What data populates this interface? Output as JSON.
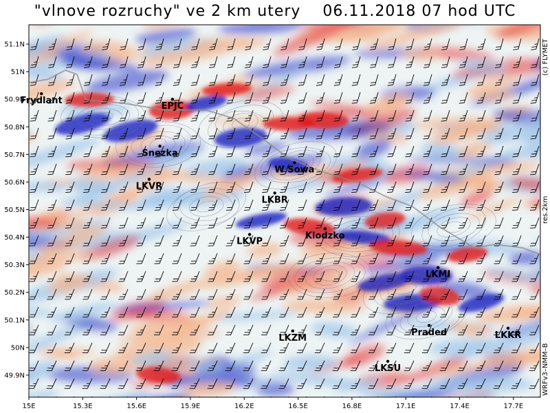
{
  "title": "\"vlnove rozruchy\" ve 2 km utery    06.11.2018 07 hod UTC",
  "y_axis_labels": [
    "51.1N",
    "51N",
    "50.9N",
    "50.8N",
    "50.7N",
    "50.6N",
    "50.5N",
    "50.4N",
    "50.3N",
    "50.2N",
    "50.1N",
    "50N",
    "49.9N"
  ],
  "x_axis_labels": [
    "15E",
    "15.3E",
    "15.6E",
    "15.9E",
    "16.2E",
    "16.5E",
    "16.8E",
    "17.1E",
    "17.4E",
    "17.7E"
  ],
  "right_top_text": "(c) FLYMET",
  "right_mid_text": "res.2km",
  "right_bottom_text": "WRFv3–NMM–B",
  "stations": [
    {
      "name": "Frydlant",
      "lon": 15.07,
      "lat": 50.92
    },
    {
      "name": "EPJC",
      "lon": 15.8,
      "lat": 50.9
    },
    {
      "name": "Snezka",
      "lon": 15.73,
      "lat": 50.73
    },
    {
      "name": "LKVR",
      "lon": 15.67,
      "lat": 50.61
    },
    {
      "name": "W Sowa",
      "lon": 16.48,
      "lat": 50.67
    },
    {
      "name": "LKBR",
      "lon": 16.37,
      "lat": 50.56
    },
    {
      "name": "LKVP",
      "lon": 16.23,
      "lat": 50.41
    },
    {
      "name": "Klodzko",
      "lon": 16.65,
      "lat": 50.43
    },
    {
      "name": "LKMI",
      "lon": 17.28,
      "lat": 50.29
    },
    {
      "name": "LKZM",
      "lon": 16.47,
      "lat": 50.06
    },
    {
      "name": "Praded",
      "lon": 17.23,
      "lat": 50.08
    },
    {
      "name": "LKKR",
      "lon": 17.67,
      "lat": 50.07
    },
    {
      "name": "LKSU",
      "lon": 17.0,
      "lat": 49.95
    }
  ],
  "map_extent": {
    "lon_min": 15.0,
    "lon_max": 17.85,
    "lat_min": 49.82,
    "lat_max": 51.17
  },
  "colors": {
    "positive": "#e83a3a",
    "negative": "#2a35c8",
    "weak_positive": "#f5b48a",
    "weak_negative": "#9ec4ea"
  }
}
